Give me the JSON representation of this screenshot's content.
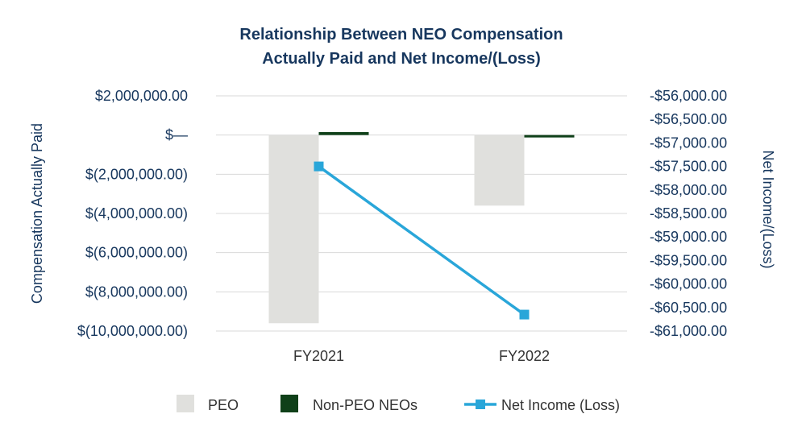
{
  "chart_data": {
    "type": "bar",
    "title_lines": [
      "Relationship Between NEO Compensation",
      "Actually Paid and Net Income/(Loss)"
    ],
    "categories": [
      "FY2021",
      "FY2022"
    ],
    "ylabel": "Compensation Actually Paid",
    "y2label": "Net Income/(Loss)",
    "ylim": [
      -10000000,
      2000000
    ],
    "yticks": [
      {
        "value": 2000000,
        "label": "$2,000,000.00"
      },
      {
        "value": 0,
        "label": "$—"
      },
      {
        "value": -2000000,
        "label": "$(2,000,000.00)"
      },
      {
        "value": -4000000,
        "label": "$(4,000,000.00)"
      },
      {
        "value": -6000000,
        "label": "$(6,000,000.00)"
      },
      {
        "value": -8000000,
        "label": "$(8,000,000.00)"
      },
      {
        "value": -10000000,
        "label": "$(10,000,000.00)"
      }
    ],
    "y2lim": [
      -61000,
      -56000
    ],
    "y2ticks": [
      {
        "value": -56000,
        "label": "-$56,000.00"
      },
      {
        "value": -56500,
        "label": "-$56,500.00"
      },
      {
        "value": -57000,
        "label": "-$57,000.00"
      },
      {
        "value": -57500,
        "label": "-$57,500.00"
      },
      {
        "value": -58000,
        "label": "-$58,000.00"
      },
      {
        "value": -58500,
        "label": "-$58,500.00"
      },
      {
        "value": -59000,
        "label": "-$59,000.00"
      },
      {
        "value": -59500,
        "label": "-$59,500.00"
      },
      {
        "value": -60000,
        "label": "-$60,000.00"
      },
      {
        "value": -60500,
        "label": "-$60,500.00"
      },
      {
        "value": -61000,
        "label": "-$61,000.00"
      }
    ],
    "series": [
      {
        "name": "PEO",
        "kind": "bar",
        "axis": "left",
        "color": "#e0e0dd",
        "values": [
          -9600000,
          -3600000
        ]
      },
      {
        "name": "Non-PEO NEOs",
        "kind": "bar",
        "axis": "left",
        "color": "#0f4019",
        "values": [
          150000,
          -50000
        ]
      },
      {
        "name": "Net Income (Loss)",
        "kind": "line",
        "axis": "right",
        "color": "#29a6d9",
        "values": [
          -57500,
          -60650
        ]
      }
    ],
    "grid": true,
    "legend_position": "bottom"
  }
}
